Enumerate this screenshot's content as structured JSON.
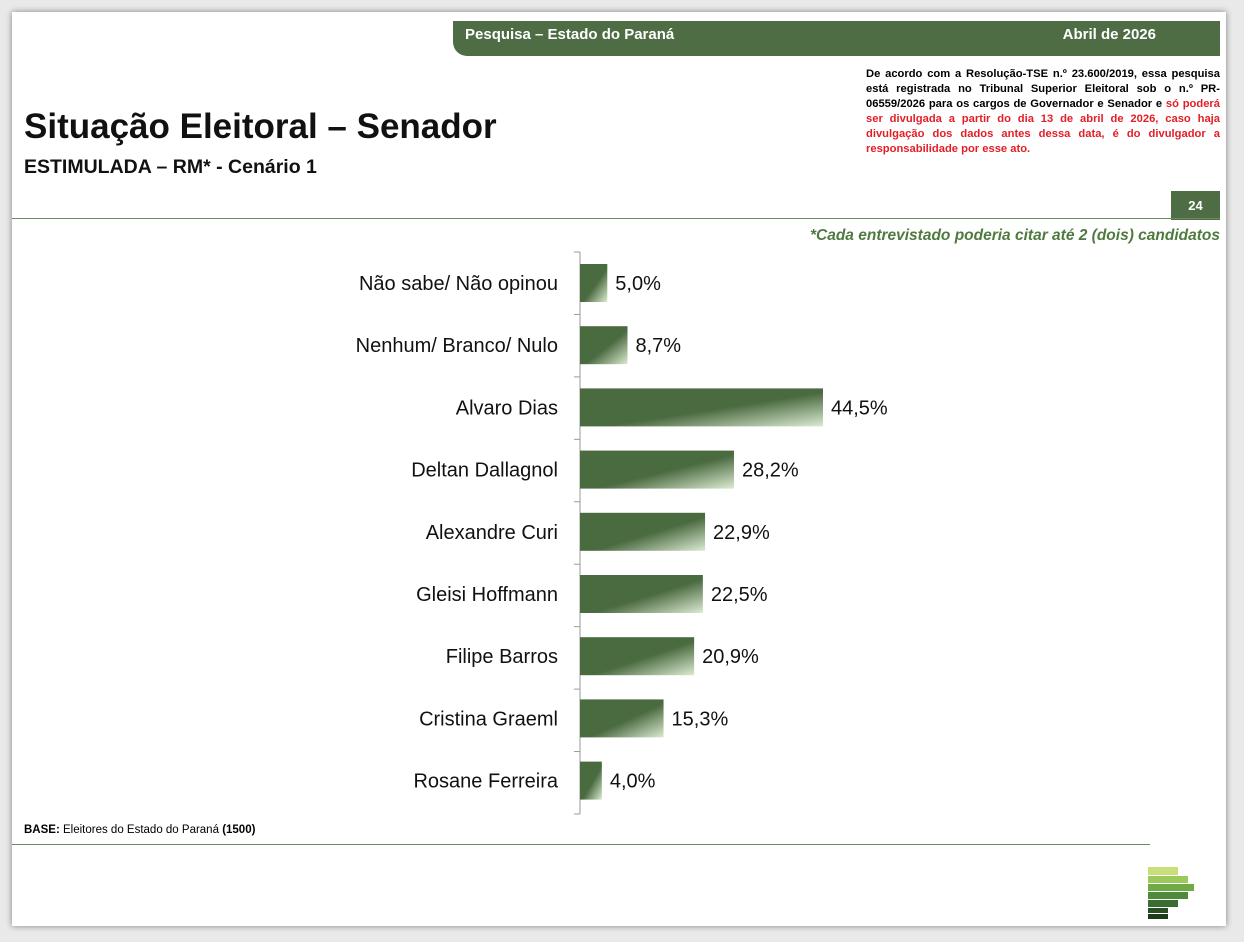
{
  "header": {
    "survey_label": "Pesquisa – Estado do Paraná",
    "date_label": "Abril de 2026",
    "page_number": "24"
  },
  "notice": {
    "black_text": "De acordo com a Resolução-TSE n.º 23.600/2019, essa pesquisa está registrada no Tribunal Superior Eleitoral sob o n.º PR-06559/2026 para os cargos de Governador e Senador e",
    "red_text": "só poderá ser divulgada a partir do dia 13 de abril de 2026, caso haja divulgação dos dados antes dessa data, é do divulgador a responsabilidade por esse ato."
  },
  "footnote": "*Cada entrevistado poderia citar até 2 (dois) candidatos",
  "base": {
    "label": "BASE:",
    "text": "Eleitores do Estado do Paraná",
    "count": "(1500)"
  },
  "colors": {
    "brand_green": "#4e6d44",
    "bar_dark": "#4a6a40",
    "bar_light": "#dcebd2",
    "warning_red": "#e41e26"
  },
  "chart_data": {
    "type": "bar",
    "orientation": "horizontal",
    "title": "Situação Eleitoral – Senador",
    "subtitle": "ESTIMULADA – RM* - Cenário 1",
    "categories": [
      "Não sabe/ Não opinou",
      "Nenhum/ Branco/ Nulo",
      "Alvaro Dias",
      "Deltan Dallagnol",
      "Alexandre Curi",
      "Gleisi Hoffmann",
      "Filipe Barros",
      "Cristina Graeml",
      "Rosane Ferreira"
    ],
    "values": [
      5.0,
      8.7,
      44.5,
      28.2,
      22.9,
      22.5,
      20.9,
      15.3,
      4.0
    ],
    "value_labels": [
      "5,0%",
      "8,7%",
      "44,5%",
      "28,2%",
      "22,9%",
      "22,5%",
      "20,9%",
      "15,3%",
      "4,0%"
    ],
    "unit": "%",
    "grid": false
  }
}
